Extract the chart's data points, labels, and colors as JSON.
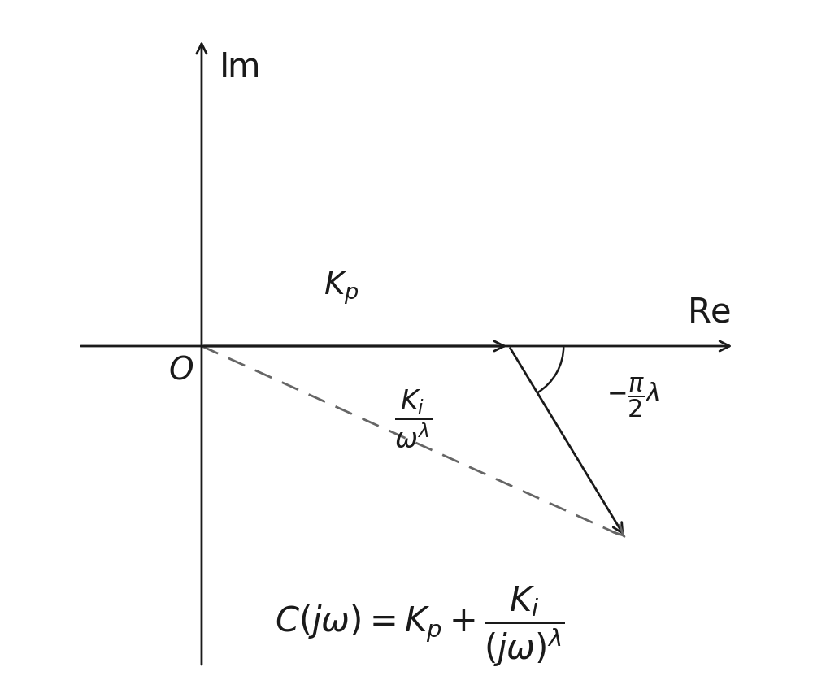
{
  "bg_color": "#ffffff",
  "line_color": "#1a1a1a",
  "dashed_color": "#666666",
  "origin_x": 2.0,
  "origin_y": 5.0,
  "kp_x": 6.5,
  "kp_y": 5.0,
  "end_x": 8.2,
  "end_y": 2.2,
  "xlim": [
    0,
    10
  ],
  "ylim": [
    0,
    10
  ],
  "figsize": [
    10.0,
    8.54
  ],
  "dpi": 100
}
